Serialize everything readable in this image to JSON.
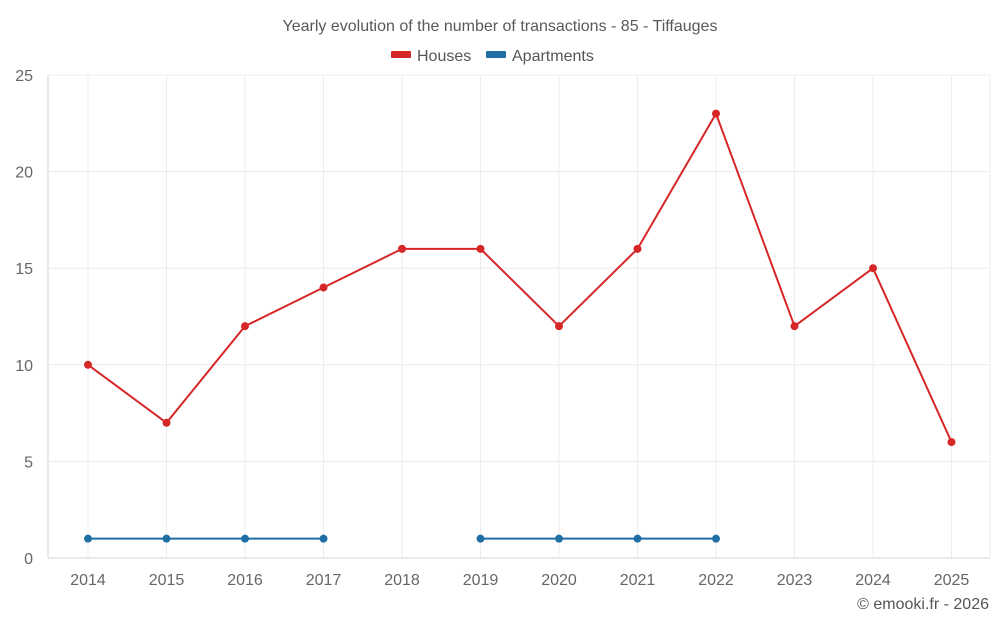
{
  "chart_data": {
    "type": "line",
    "title": "Yearly evolution of the number of transactions - 85 - Tiffauges",
    "xlabel": "",
    "ylabel": "",
    "categories": [
      "2014",
      "2015",
      "2016",
      "2017",
      "2018",
      "2019",
      "2020",
      "2021",
      "2022",
      "2023",
      "2024",
      "2025"
    ],
    "ylim": [
      0,
      25
    ],
    "yticks": [
      0,
      5,
      10,
      15,
      20,
      25
    ],
    "grid": true,
    "legend_position": "top-center",
    "series": [
      {
        "name": "Houses",
        "color": "#d62728",
        "values": [
          10,
          7,
          12,
          14,
          16,
          16,
          12,
          16,
          23,
          12,
          15,
          6
        ]
      },
      {
        "name": "Apartments",
        "color": "#1f6fa5",
        "values": [
          1,
          1,
          1,
          1,
          null,
          1,
          1,
          1,
          1,
          null,
          null,
          null
        ]
      }
    ]
  },
  "credit": "© emooki.fr - 2026"
}
